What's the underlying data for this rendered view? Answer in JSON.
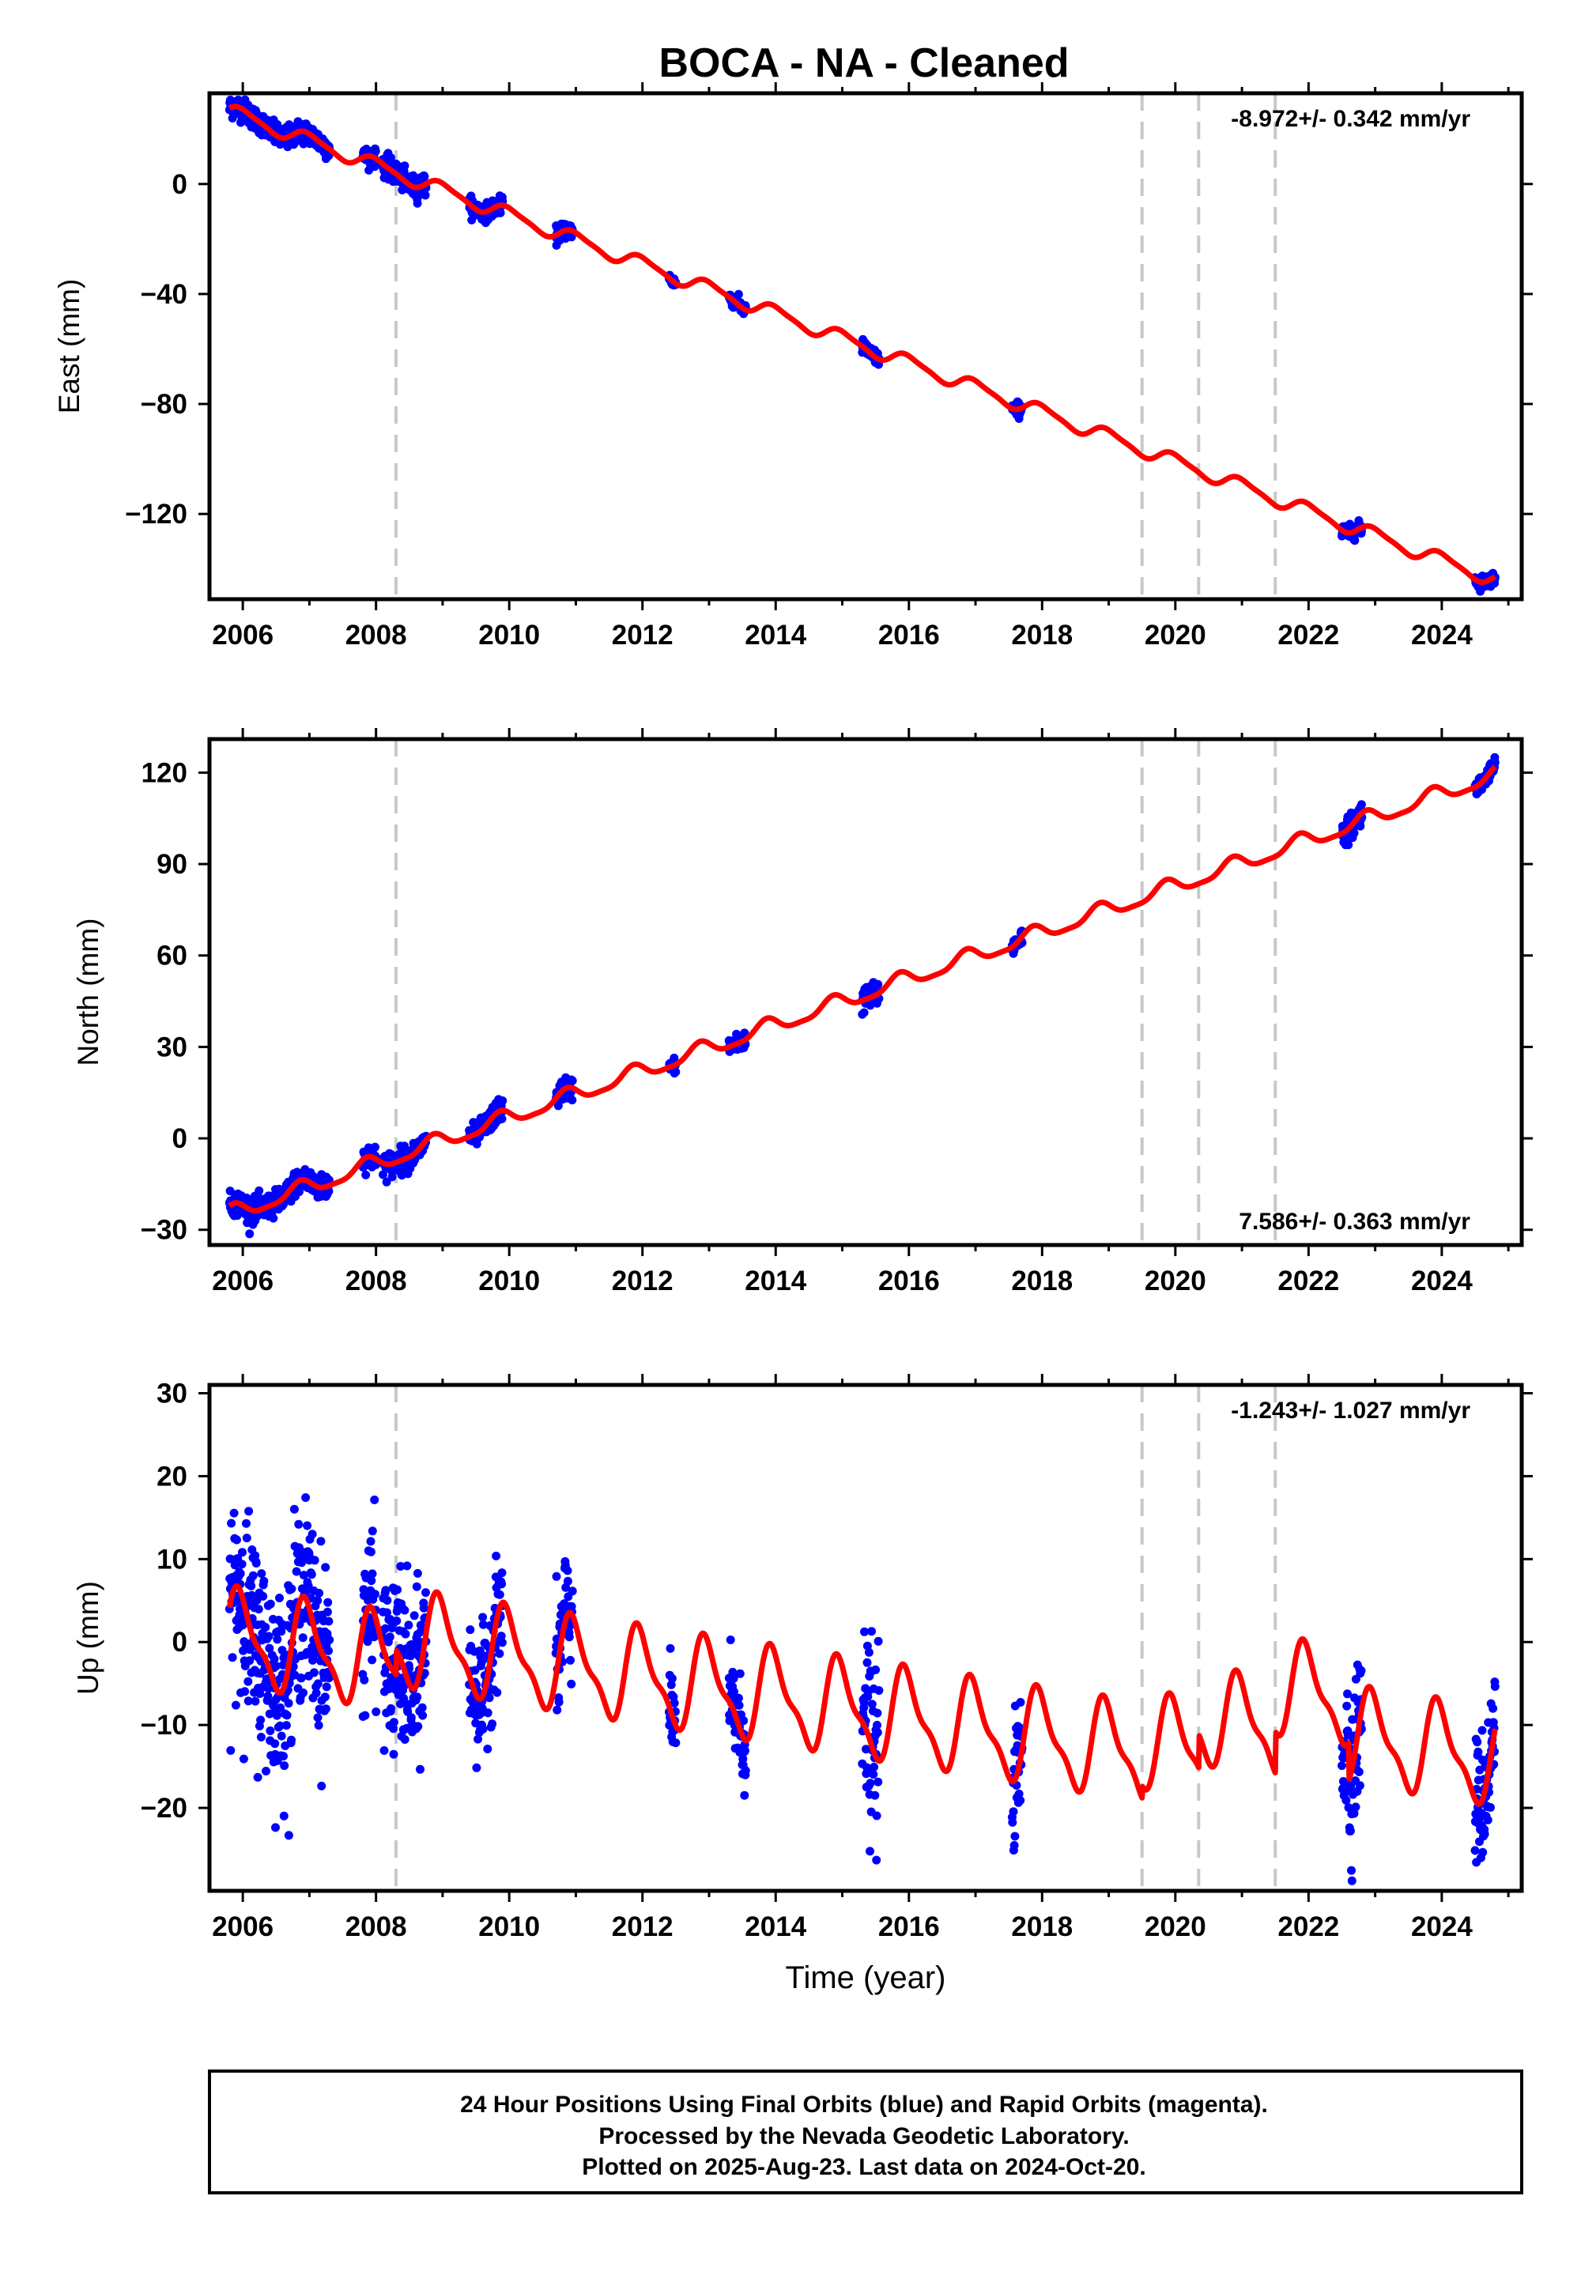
{
  "title": "BOCA  - NA - Cleaned",
  "footer": {
    "lines": [
      "24 Hour Positions Using Final Orbits (blue) and Rapid Orbits (magenta).",
      "Processed by the Nevada Geodetic Laboratory.",
      "Plotted on 2025-Aug-23. Last data on 2024-Oct-20."
    ]
  },
  "colors": {
    "data": "#0000ff",
    "model": "#ff0000",
    "events": "#c8c8c8",
    "axes": "#000000"
  },
  "chart_data": [
    {
      "type": "scatter",
      "component": "East",
      "ylabel": "East (mm)",
      "xlabel": "",
      "xlim": [
        2005.5,
        2025.2
      ],
      "ylim": [
        -151,
        33
      ],
      "x_ticks": [
        2006,
        2008,
        2010,
        2012,
        2014,
        2016,
        2018,
        2020,
        2022,
        2024
      ],
      "y_ticks": [
        -120,
        -80,
        -40,
        0
      ],
      "rate_text": "-8.972+/- 0.342 mm/yr",
      "rate_position": "top-right",
      "event_lines": [
        2008.3,
        2019.5,
        2020.35,
        2021.5
      ],
      "model": {
        "base": 26.5,
        "t0": 2005.8,
        "rate": -8.972,
        "annual_amp": 2.5,
        "annual_phase": 0.3,
        "semi_amp": 0.6
      },
      "data_clusters": [
        {
          "start": 2005.8,
          "end": 2006.5,
          "noise": 2.0
        },
        {
          "start": 2006.5,
          "end": 2007.3,
          "noise": 2.0
        },
        {
          "start": 2007.8,
          "end": 2008.0,
          "noise": 1.5
        },
        {
          "start": 2008.1,
          "end": 2008.75,
          "noise": 2.0
        },
        {
          "start": 2009.4,
          "end": 2009.9,
          "noise": 1.5
        },
        {
          "start": 2010.7,
          "end": 2010.95,
          "noise": 1.5
        },
        {
          "start": 2012.4,
          "end": 2012.5,
          "noise": 1.0
        },
        {
          "start": 2013.3,
          "end": 2013.55,
          "noise": 1.2
        },
        {
          "start": 2015.3,
          "end": 2015.55,
          "noise": 1.3
        },
        {
          "start": 2017.55,
          "end": 2017.7,
          "noise": 1.3
        },
        {
          "start": 2022.5,
          "end": 2022.8,
          "noise": 1.3
        },
        {
          "start": 2024.5,
          "end": 2024.8,
          "noise": 1.2
        }
      ]
    },
    {
      "type": "scatter",
      "component": "North",
      "ylabel": "North (mm)",
      "xlabel": "",
      "xlim": [
        2005.5,
        2025.2
      ],
      "ylim": [
        -35,
        131
      ],
      "x_ticks": [
        2006,
        2008,
        2010,
        2012,
        2014,
        2016,
        2018,
        2020,
        2022,
        2024
      ],
      "y_ticks": [
        -30,
        0,
        30,
        60,
        90,
        120
      ],
      "rate_text": "7.586+/- 0.363 mm/yr",
      "rate_position": "bottom-right",
      "event_lines": [
        2008.3,
        2019.5,
        2020.35,
        2021.5
      ],
      "model": {
        "base": -25,
        "t0": 2005.8,
        "rate": 7.586,
        "annual_amp": 2.5,
        "annual_phase": 1.2,
        "semi_amp": 0.7
      },
      "data_clusters": [
        {
          "start": 2005.8,
          "end": 2006.5,
          "noise": 2.0
        },
        {
          "start": 2006.5,
          "end": 2007.3,
          "noise": 2.0
        },
        {
          "start": 2007.8,
          "end": 2008.0,
          "noise": 2.0
        },
        {
          "start": 2008.1,
          "end": 2008.75,
          "noise": 2.0
        },
        {
          "start": 2009.4,
          "end": 2009.9,
          "noise": 1.8
        },
        {
          "start": 2010.7,
          "end": 2010.95,
          "noise": 1.8
        },
        {
          "start": 2012.4,
          "end": 2012.5,
          "noise": 1.2
        },
        {
          "start": 2013.3,
          "end": 2013.55,
          "noise": 1.5
        },
        {
          "start": 2015.3,
          "end": 2015.55,
          "noise": 2.0
        },
        {
          "start": 2017.55,
          "end": 2017.7,
          "noise": 1.5
        },
        {
          "start": 2022.5,
          "end": 2022.8,
          "noise": 2.0
        },
        {
          "start": 2024.5,
          "end": 2024.8,
          "noise": 1.2
        }
      ]
    },
    {
      "type": "scatter",
      "component": "Up",
      "ylabel": "Up (mm)",
      "xlabel": "Time (year)",
      "xlim": [
        2005.5,
        2025.2
      ],
      "ylim": [
        -30,
        31
      ],
      "x_ticks": [
        2006,
        2008,
        2010,
        2012,
        2014,
        2016,
        2018,
        2020,
        2022,
        2024
      ],
      "y_ticks": [
        -20,
        -10,
        0,
        10,
        20,
        30
      ],
      "rate_text": "-1.243+/- 1.027 mm/yr",
      "rate_position": "top-right",
      "event_lines": [
        2008.3,
        2019.5,
        2020.35,
        2021.5
      ],
      "model": {
        "base": 0.5,
        "t0": 2005.8,
        "rate": -1.243,
        "annual_amp": 5.2,
        "annual_phase": 0.5,
        "semi_amp": 1.8,
        "offsets": [
          [
            2008.3,
            3.0
          ],
          [
            2019.5,
            1.5
          ],
          [
            2020.35,
            4.0
          ],
          [
            2021.5,
            5.0
          ],
          [
            2022.6,
            -4.5
          ]
        ]
      },
      "data_clusters": [
        {
          "start": 2005.8,
          "end": 2006.5,
          "noise": 6.0
        },
        {
          "start": 2006.5,
          "end": 2007.3,
          "noise": 5.5
        },
        {
          "start": 2007.8,
          "end": 2008.0,
          "noise": 5.0
        },
        {
          "start": 2008.1,
          "end": 2008.75,
          "noise": 5.0
        },
        {
          "start": 2009.4,
          "end": 2009.9,
          "noise": 3.5
        },
        {
          "start": 2010.7,
          "end": 2010.95,
          "noise": 4.0
        },
        {
          "start": 2012.4,
          "end": 2012.5,
          "noise": 2.5
        },
        {
          "start": 2013.3,
          "end": 2013.55,
          "noise": 3.0
        },
        {
          "start": 2015.3,
          "end": 2015.55,
          "noise": 5.5
        },
        {
          "start": 2017.55,
          "end": 2017.7,
          "noise": 4.0
        },
        {
          "start": 2022.5,
          "end": 2022.8,
          "noise": 4.5
        },
        {
          "start": 2024.5,
          "end": 2024.8,
          "noise": 4.0
        }
      ]
    }
  ]
}
